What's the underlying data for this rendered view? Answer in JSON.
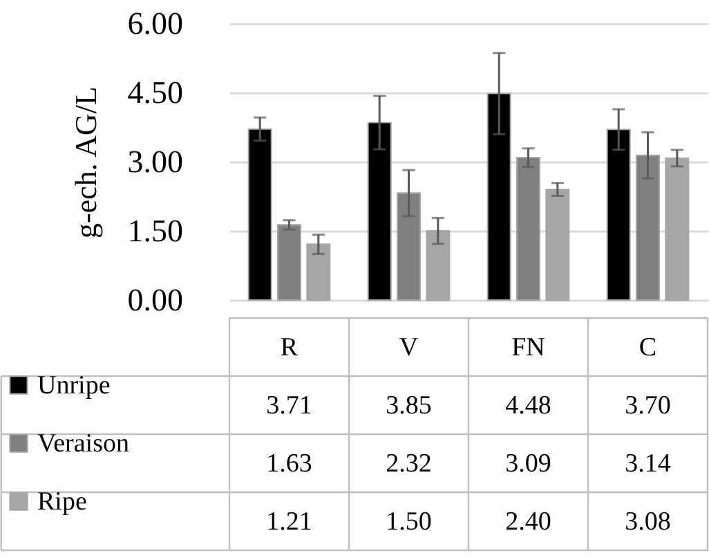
{
  "chart_data": {
    "type": "bar",
    "ylabel": "g-ech. AG/L",
    "categories": [
      "R",
      "V",
      "FN",
      "C"
    ],
    "series": [
      {
        "name": "Unripe",
        "color": "#000000",
        "values": [
          3.71,
          3.85,
          4.48,
          3.7
        ],
        "value_labels": [
          "3.71",
          "3.85",
          "4.48",
          "3.70"
        ],
        "errors": [
          0.25,
          0.58,
          0.88,
          0.44
        ]
      },
      {
        "name": "Veraison",
        "color": "#808080",
        "values": [
          1.63,
          2.32,
          3.09,
          3.14
        ],
        "value_labels": [
          "1.63",
          "2.32",
          "3.09",
          "3.14"
        ],
        "errors": [
          0.1,
          0.5,
          0.2,
          0.5
        ]
      },
      {
        "name": "Ripe",
        "color": "#a6a6a6",
        "values": [
          1.21,
          1.5,
          2.4,
          3.08
        ],
        "value_labels": [
          "1.21",
          "1.50",
          "2.40",
          "3.08"
        ],
        "errors": [
          0.21,
          0.28,
          0.14,
          0.18
        ]
      }
    ],
    "ylim": [
      0,
      6
    ],
    "yticks": [
      {
        "value": 0,
        "label": "0.00"
      },
      {
        "value": 1.5,
        "label": "1.50"
      },
      {
        "value": 3,
        "label": "3.00"
      },
      {
        "value": 4.5,
        "label": "4.50"
      },
      {
        "value": 6,
        "label": "6.00"
      }
    ],
    "grid": "y",
    "legend": "bottom"
  }
}
